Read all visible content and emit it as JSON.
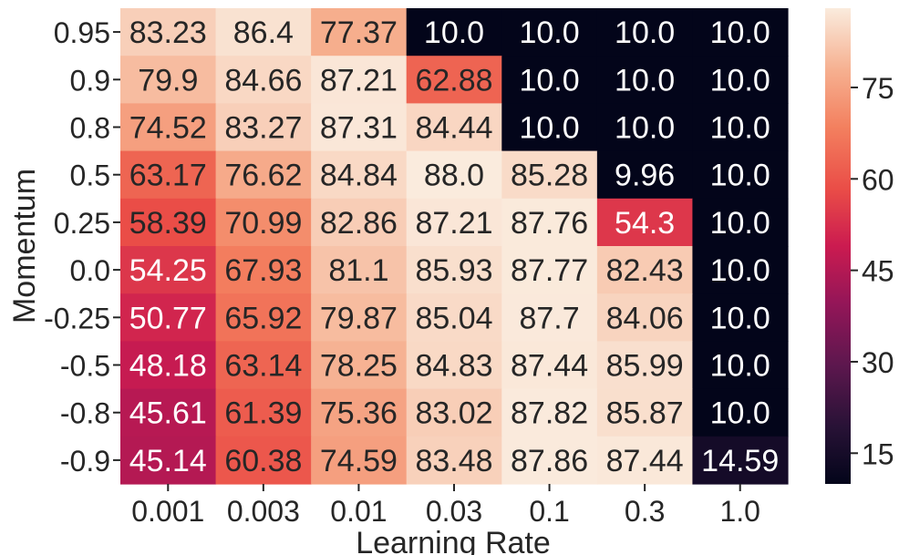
{
  "chart_data": {
    "type": "heatmap",
    "title": "",
    "xlabel": "Learning Rate",
    "ylabel": "Momentum",
    "x_categories": [
      "0.001",
      "0.003",
      "0.01",
      "0.03",
      "0.1",
      "0.3",
      "1.0"
    ],
    "y_categories": [
      "0.95",
      "0.9",
      "0.8",
      "0.5",
      "0.25",
      "0.0",
      "-0.25",
      "-0.5",
      "-0.8",
      "-0.9"
    ],
    "values": [
      [
        "83.23",
        "86.4",
        "77.37",
        "10.0",
        "10.0",
        "10.0",
        "10.0"
      ],
      [
        "79.9",
        "84.66",
        "87.21",
        "62.88",
        "10.0",
        "10.0",
        "10.0"
      ],
      [
        "74.52",
        "83.27",
        "87.31",
        "84.44",
        "10.0",
        "10.0",
        "10.0"
      ],
      [
        "63.17",
        "76.62",
        "84.84",
        "88.0",
        "85.28",
        "9.96",
        "10.0"
      ],
      [
        "58.39",
        "70.99",
        "82.86",
        "87.21",
        "87.76",
        "54.3",
        "10.0"
      ],
      [
        "54.25",
        "67.93",
        "81.1",
        "85.93",
        "87.77",
        "82.43",
        "10.0"
      ],
      [
        "50.77",
        "65.92",
        "79.87",
        "85.04",
        "87.7",
        "84.06",
        "10.0"
      ],
      [
        "48.18",
        "63.14",
        "78.25",
        "84.83",
        "87.44",
        "85.99",
        "10.0"
      ],
      [
        "45.61",
        "61.39",
        "75.36",
        "83.02",
        "87.82",
        "85.87",
        "10.0"
      ],
      [
        "45.14",
        "60.38",
        "74.59",
        "83.48",
        "87.86",
        "87.44",
        "14.59"
      ]
    ],
    "colorbar": {
      "vmin": 9.96,
      "vmax": 88.0,
      "ticks": [
        "15",
        "30",
        "45",
        "60",
        "75"
      ]
    },
    "colormap": "rocket",
    "legend": "colorbar-right"
  }
}
